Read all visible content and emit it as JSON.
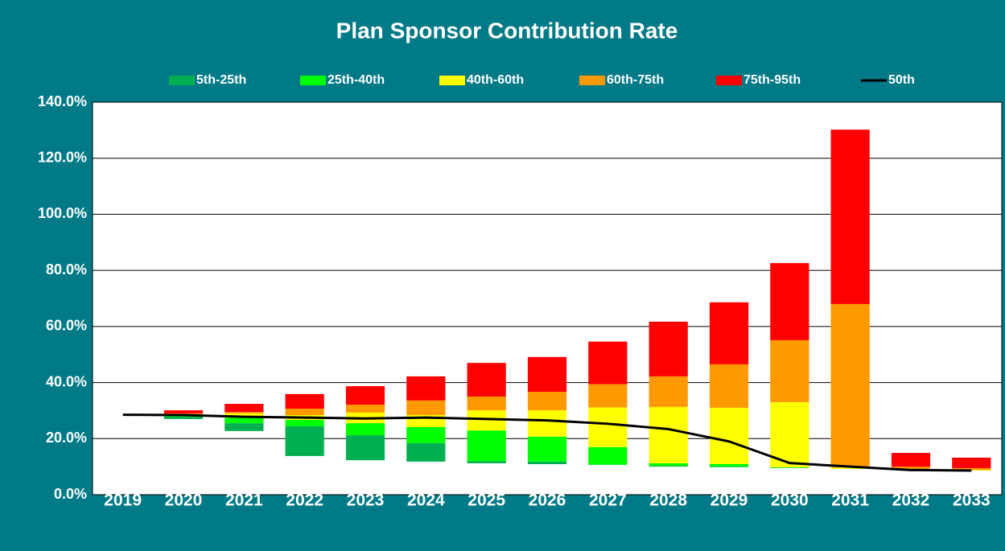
{
  "chart_data": {
    "type": "floating_stacked_bar",
    "title": "Plan Sponsor Contribution Rate",
    "categories": [
      "2019",
      "2020",
      "2021",
      "2022",
      "2023",
      "2024",
      "2025",
      "2026",
      "2027",
      "2028",
      "2029",
      "2030",
      "2031",
      "2032",
      "2033"
    ],
    "base": [
      null,
      27.0,
      22.7,
      13.8,
      12.3,
      11.8,
      11.2,
      10.9,
      10.6,
      10.0,
      9.8,
      9.5,
      9.2,
      8.9,
      8.6
    ],
    "series": [
      {
        "name": "5th-25th",
        "color": "#00b050",
        "values": [
          null,
          0.8,
          2.8,
          10.6,
          8.9,
          6.6,
          0.8,
          0.9,
          0.1,
          0.3,
          0.2,
          0.1,
          0,
          0,
          0
        ]
      },
      {
        "name": "25th-40th",
        "color": "#00ff00",
        "values": [
          null,
          0.6,
          2.0,
          2.3,
          4.3,
          5.7,
          10.9,
          8.9,
          6.3,
          0.9,
          0.9,
          0.2,
          0,
          0,
          0
        ]
      },
      {
        "name": "40th-60th",
        "color": "#ffff00",
        "values": [
          null,
          0.3,
          1.5,
          1.7,
          3.8,
          4.3,
          7.2,
          9.4,
          14.1,
          20.1,
          20.1,
          23.2,
          0.5,
          0.3,
          0.2
        ]
      },
      {
        "name": "60th-75th",
        "color": "#ff9900",
        "values": [
          null,
          0.3,
          0.5,
          2.3,
          2.8,
          5.2,
          4.9,
          6.6,
          8.3,
          10.9,
          15.5,
          22.1,
          58.3,
          0.8,
          0.7
        ]
      },
      {
        "name": "75th-95th",
        "color": "#ff0000",
        "values": [
          null,
          1.1,
          2.9,
          5.2,
          6.6,
          8.6,
          12.0,
          12.4,
          15.2,
          19.5,
          22.1,
          27.5,
          62.2,
          4.9,
          3.7
        ]
      }
    ],
    "line": {
      "name": "50th",
      "color": "#000000",
      "values": [
        28.5,
        28.4,
        27.8,
        27.5,
        27.2,
        27.5,
        27.0,
        26.5,
        25.3,
        23.4,
        19.0,
        11.3,
        10.0,
        8.8,
        8.6
      ]
    },
    "ylim": [
      0,
      140
    ],
    "yticks": [
      {
        "value": 0,
        "label": "0.0%"
      },
      {
        "value": 20,
        "label": "20.0%"
      },
      {
        "value": 40,
        "label": "40.0%"
      },
      {
        "value": 60,
        "label": "60.0%"
      },
      {
        "value": 80,
        "label": "80.0%"
      },
      {
        "value": 100,
        "label": "100.0%"
      },
      {
        "value": 120,
        "label": "120.0%"
      },
      {
        "value": 140,
        "label": "140.0%"
      }
    ],
    "grid": true
  }
}
